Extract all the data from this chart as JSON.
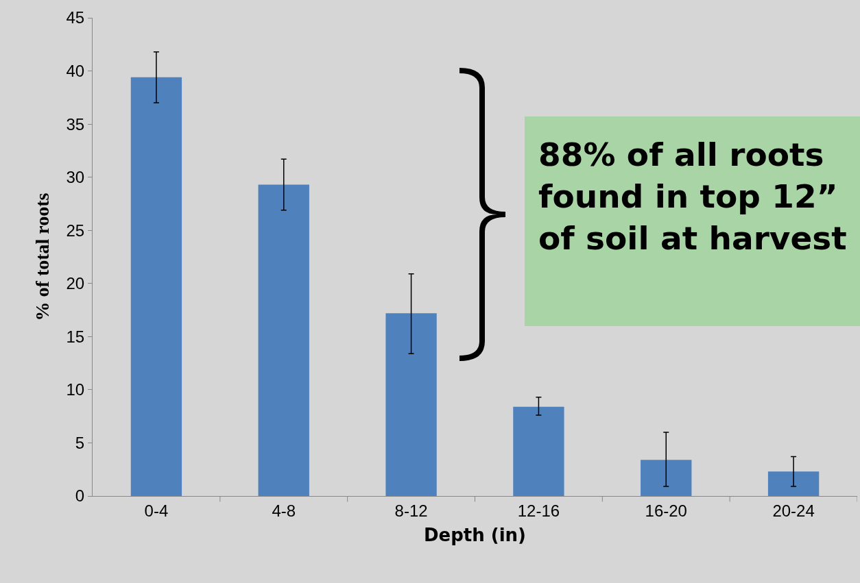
{
  "chart_data": {
    "type": "bar",
    "xlabel": "Depth (in)",
    "ylabel": "% of total roots",
    "categories": [
      "0-4",
      "4-8",
      "8-12",
      "12-16",
      "16-20",
      "20-24"
    ],
    "values": [
      39.4,
      29.3,
      17.2,
      8.4,
      3.4,
      2.3
    ],
    "errors": [
      [
        37.0,
        41.8
      ],
      [
        26.9,
        31.7
      ],
      [
        13.4,
        20.9
      ],
      [
        7.6,
        9.3
      ],
      [
        0.9,
        6.0
      ],
      [
        0.9,
        3.7
      ]
    ],
    "color": "#4f81bd",
    "ylim": [
      0,
      45
    ],
    "yticks": [
      0,
      5,
      10,
      15,
      20,
      25,
      30,
      35,
      40,
      45
    ],
    "grid": false,
    "annotations": [
      "88% of all roots\nfound in top 12”\nof soil at harvest"
    ]
  }
}
